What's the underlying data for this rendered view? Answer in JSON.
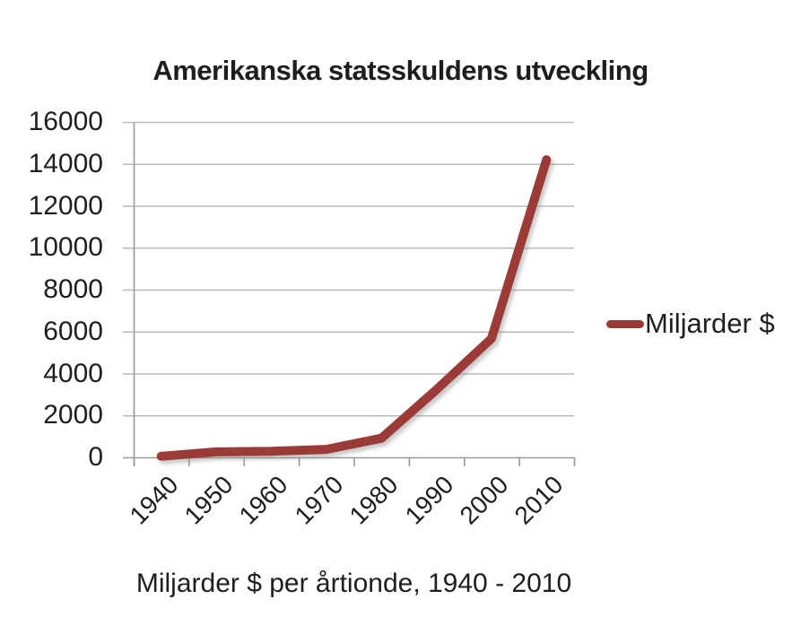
{
  "page": {
    "background_color": "#ffffff",
    "text_color": "#1e1e1e"
  },
  "chart_data": {
    "type": "line",
    "title": "Amerikanska statsskuldens utveckling",
    "caption": "Miljarder $ per årtionde, 1940 - 2010",
    "categories": [
      "1940",
      "1950",
      "1960",
      "1970",
      "1980",
      "1990",
      "2000",
      "2010"
    ],
    "series": [
      {
        "name": "Miljarder $",
        "color": "#9A3A37",
        "values": [
          50,
          260,
          290,
          380,
          910,
          3230,
          5670,
          14200
        ]
      }
    ],
    "xlabel": "",
    "ylabel": "",
    "ylim": [
      0,
      16000
    ],
    "yticks": [
      0,
      2000,
      4000,
      6000,
      8000,
      10000,
      12000,
      14000,
      16000
    ],
    "grid": true,
    "legend_position": "right",
    "grid_color": "#B9B9B9",
    "axis_color": "#999999",
    "shadow_color": "#8a8a8a"
  }
}
